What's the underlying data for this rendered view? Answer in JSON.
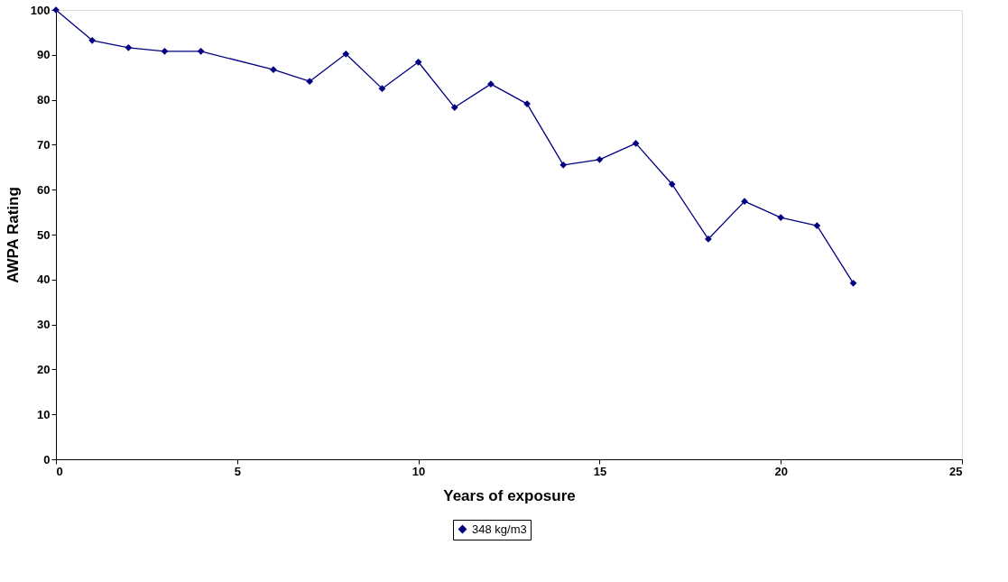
{
  "chart_data": {
    "type": "line",
    "xlabel": "Years of exposure",
    "ylabel": "AWPA Rating",
    "x": [
      0,
      1,
      2,
      3,
      4,
      6,
      7,
      8,
      9,
      10,
      11,
      12,
      13,
      14,
      15,
      16,
      17,
      18,
      19,
      20,
      21,
      22
    ],
    "series": [
      {
        "name": "348 kg/m3",
        "color": "#000080",
        "values": [
          100,
          93.2,
          91.6,
          90.8,
          90.8,
          86.7,
          84.1,
          90.2,
          82.5,
          88.4,
          78.3,
          83.5,
          79.1,
          65.5,
          66.7,
          70.3,
          61.2,
          49.0,
          57.4,
          53.8,
          52.0,
          39.2
        ]
      }
    ],
    "xlim": [
      0,
      25
    ],
    "xticks": [
      0,
      5,
      10,
      15,
      20,
      25
    ],
    "ylim": [
      0,
      100
    ],
    "yticks": [
      0,
      10,
      20,
      30,
      40,
      50,
      60,
      70,
      80,
      90,
      100
    ],
    "grid": false,
    "legend": "bottom",
    "marker": "diamond",
    "line_style": "solid"
  }
}
